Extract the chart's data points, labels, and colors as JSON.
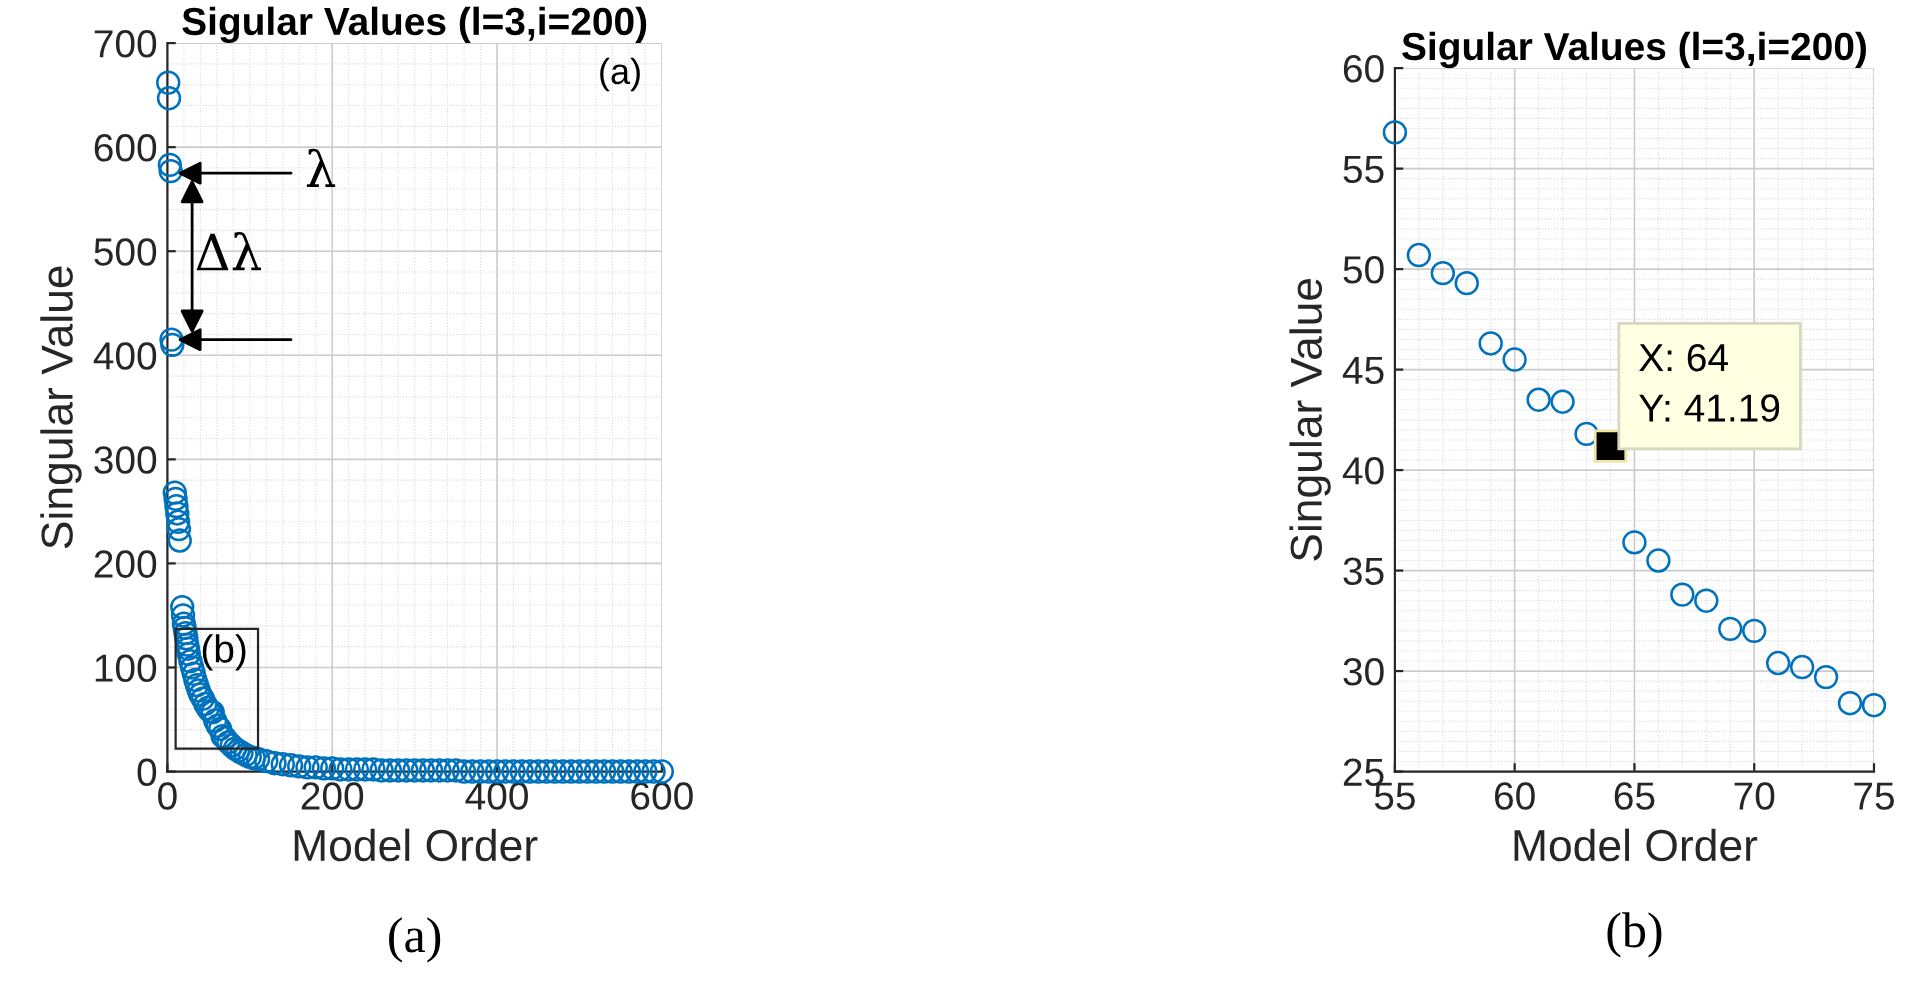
{
  "chart_data": [
    {
      "type": "scatter",
      "title": "Sigular Values (l=3,i=200)",
      "xlabel": "Model Order",
      "ylabel": "Singular Value",
      "series": [
        {
          "color": "#0072bd",
          "x": [
            1,
            2,
            3,
            4,
            5,
            6,
            9,
            10,
            11,
            12,
            13,
            14,
            15,
            18,
            19,
            20,
            21,
            22,
            23,
            24,
            25,
            26,
            28,
            30,
            32,
            34,
            36,
            38,
            40,
            43,
            46,
            49,
            52,
            55,
            58,
            61,
            64,
            67,
            70,
            74,
            78,
            82,
            86,
            90,
            95,
            100,
            105,
            110,
            120,
            130,
            140,
            150,
            160,
            170,
            180,
            190,
            200,
            210,
            220,
            230,
            240,
            250,
            260,
            270,
            280,
            290,
            300,
            310,
            320,
            330,
            340,
            350,
            360,
            370,
            380,
            390,
            400,
            410,
            420,
            430,
            440,
            450,
            460,
            470,
            480,
            490,
            500,
            510,
            520,
            530,
            540,
            550,
            560,
            570,
            580,
            590,
            600
          ],
          "values": [
            662,
            647,
            583,
            577,
            415,
            410,
            268,
            262,
            255,
            248,
            240,
            233,
            222,
            158,
            150,
            142,
            138,
            133,
            128,
            122,
            118,
            113,
            106,
            100,
            94,
            88,
            83,
            78,
            74,
            70,
            65,
            61,
            58,
            57,
            49,
            44,
            41,
            34,
            32,
            28,
            25,
            22,
            20,
            18,
            16,
            14,
            13,
            12,
            10,
            8,
            7,
            6,
            5,
            4,
            4,
            3,
            3,
            2,
            2,
            2,
            2,
            2,
            1,
            1,
            1,
            1,
            1,
            1,
            1,
            1,
            1,
            1,
            0,
            0,
            0,
            0,
            0,
            0,
            0,
            0,
            0,
            0,
            0,
            0,
            0,
            0,
            0,
            0,
            0,
            0,
            0,
            0,
            0,
            0,
            0,
            0,
            0
          ]
        }
      ],
      "xlim": [
        0,
        600
      ],
      "xticks": [
        0,
        200,
        400,
        600
      ],
      "ylim": [
        0,
        700
      ],
      "yticks": [
        0,
        100,
        200,
        300,
        400,
        500,
        600,
        700
      ],
      "grid": true,
      "marker": "circle",
      "annotations": [
        "(a)",
        {
          "text": "λ",
          "x": 5,
          "y": 575
        },
        {
          "text": "Δλ",
          "x": 5,
          "y": 415
        },
        {
          "text": "(b)",
          "x": 10,
          "y": 137
        },
        "(a)"
      ]
    },
    {
      "type": "scatter",
      "title": "Sigular Values (l=3,i=200)",
      "xlabel": "Model Order",
      "ylabel": "Singular Value",
      "series": [
        {
          "color": "#0072bd",
          "x": [
            55,
            56,
            57,
            58,
            59,
            60,
            61,
            62,
            63,
            64,
            65,
            66,
            67,
            68,
            69,
            70,
            71,
            72,
            73,
            74,
            75
          ],
          "values": [
            56.8,
            50.7,
            49.8,
            49.3,
            46.3,
            45.5,
            43.5,
            43.4,
            41.8,
            41.2,
            36.4,
            35.5,
            33.8,
            33.5,
            32.1,
            32.0,
            30.4,
            30.2,
            29.7,
            28.4,
            28.3
          ]
        }
      ],
      "xlim": [
        55,
        75
      ],
      "xticks": [
        55,
        60,
        65,
        70,
        75
      ],
      "ylim": [
        25,
        60
      ],
      "yticks": [
        25,
        30,
        35,
        40,
        45,
        50,
        55,
        60
      ],
      "grid": true,
      "marker": "circle",
      "annotations": [
        {
          "text": "X: 64\nY: 41.19",
          "x": 64,
          "y": 41.19
        },
        "(b)"
      ]
    }
  ]
}
